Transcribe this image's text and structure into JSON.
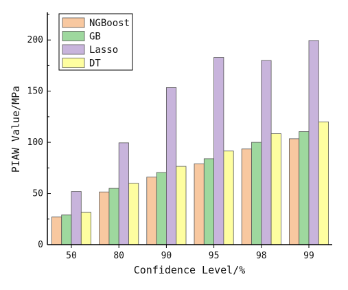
{
  "chart_data": {
    "type": "bar",
    "xlabel": "Confidence Level/%",
    "ylabel": "PIAW Value/MPa",
    "categories": [
      "50",
      "80",
      "90",
      "95",
      "98",
      "99"
    ],
    "ylim": [
      0,
      227
    ],
    "yticks": [
      0,
      50,
      100,
      150,
      200
    ],
    "grid": false,
    "legend_position": "top-left",
    "series": [
      {
        "name": "NGBoost",
        "color": "#F8C8A0",
        "values": [
          27,
          51.5,
          66,
          79,
          93.5,
          103.5
        ]
      },
      {
        "name": "GB",
        "color": "#9ED89E",
        "values": [
          29,
          55,
          70.5,
          84,
          100,
          110.5
        ]
      },
      {
        "name": "Lasso",
        "color": "#C8B4DC",
        "values": [
          52,
          99.5,
          153.5,
          183,
          180,
          199.5
        ]
      },
      {
        "name": "DT",
        "color": "#FEFEA0",
        "values": [
          31.5,
          60,
          76.5,
          91.5,
          108.5,
          120
        ]
      }
    ]
  }
}
